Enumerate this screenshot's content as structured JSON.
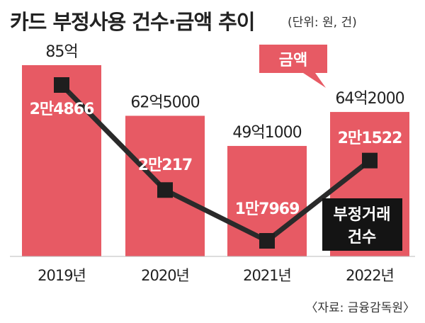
{
  "header": {
    "title": "카드 부정사용 건수·금액 추이",
    "unit": "(단위: 원, 건)"
  },
  "source": "〈자료: 금융감독원〉",
  "legend": {
    "amount_label": "금액",
    "count_label_line1": "부정거래",
    "count_label_line2": "건수"
  },
  "colors": {
    "bar": "#e75a64",
    "line": "#2a2a2a",
    "marker": "#1e1e1e",
    "count_label": "#ffffff",
    "amount_label": "#222222",
    "legend_amount_bg": "#e75a64",
    "legend_count_bg": "#141414"
  },
  "chart_data": {
    "type": "bar",
    "categories": [
      "2019년",
      "2020년",
      "2021년",
      "2022년"
    ],
    "series": [
      {
        "name": "금액",
        "type": "bar",
        "values": [
          8500000000,
          6250000000,
          4910000000,
          6420000000
        ],
        "labels": [
          "85억",
          "62억5000",
          "49억1000",
          "64억2000"
        ]
      },
      {
        "name": "부정거래 건수",
        "type": "line",
        "values": [
          24866,
          20217,
          17969,
          21522
        ],
        "labels": [
          "2만4866",
          "2만217",
          "1만7969",
          "2만1522"
        ]
      }
    ],
    "title": "카드 부정사용 건수·금액 추이",
    "unit": "(단위: 원, 건)"
  }
}
